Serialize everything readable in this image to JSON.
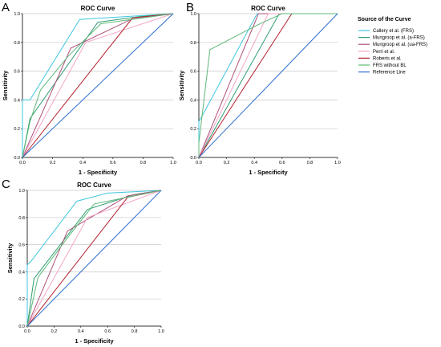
{
  "legend": {
    "title": "Source of the Curve",
    "items": [
      {
        "label": "Callery et al. (FRS)",
        "color": "#3ec6e0"
      },
      {
        "label": "Mungroop et al. (a-FRS)",
        "color": "#2e9e72"
      },
      {
        "label": "Mungroop et al. (ua-FRS)",
        "color": "#b0507a"
      },
      {
        "label": "Perri et al.",
        "color": "#f4a6c8"
      },
      {
        "label": "Roberts et al.",
        "color": "#b3202e"
      },
      {
        "label": "FRS without BL",
        "color": "#5fb87a"
      },
      {
        "label": "Reference Line",
        "color": "#2f6fd0"
      }
    ]
  },
  "chart_data": [
    {
      "panel": "A",
      "type": "line",
      "title": "ROC Curve",
      "xlabel": "1 - Specificity",
      "ylabel": "Sensitivity",
      "xlim": [
        0,
        1
      ],
      "ylim": [
        0,
        1
      ],
      "xticks": [
        "0.0",
        "0.2",
        "0.4",
        "0.6",
        "0.8",
        "1.0"
      ],
      "yticks": [
        "0.0",
        "0.2",
        "0.4",
        "0.6",
        "0.8",
        "1.0"
      ],
      "grid": "horizontal",
      "series": [
        {
          "name": "Callery et al. (FRS)",
          "points": [
            [
              0,
              0
            ],
            [
              0,
              0.4
            ],
            [
              0.05,
              0.4
            ],
            [
              0.38,
              0.96
            ],
            [
              1,
              1
            ]
          ]
        },
        {
          "name": "Mungroop et al. (a-FRS)",
          "points": [
            [
              0,
              0
            ],
            [
              0.05,
              0.27
            ],
            [
              0.5,
              0.94
            ],
            [
              0.78,
              0.98
            ],
            [
              1,
              1
            ]
          ]
        },
        {
          "name": "Mungroop et al. (ua-FRS)",
          "points": [
            [
              0,
              0
            ],
            [
              0.32,
              0.76
            ],
            [
              0.72,
              0.96
            ],
            [
              1,
              1
            ]
          ]
        },
        {
          "name": "Perri et al.",
          "points": [
            [
              0,
              0
            ],
            [
              0.42,
              0.8
            ],
            [
              1,
              1
            ]
          ]
        },
        {
          "name": "Roberts et al.",
          "points": [
            [
              0,
              0
            ],
            [
              0.73,
              0.97
            ],
            [
              1,
              1
            ]
          ]
        },
        {
          "name": "FRS without BL",
          "points": [
            [
              0,
              0
            ],
            [
              0.05,
              0.25
            ],
            [
              0.12,
              0.47
            ],
            [
              0.3,
              0.7
            ],
            [
              0.52,
              0.93
            ],
            [
              1,
              1
            ]
          ]
        },
        {
          "name": "Reference Line",
          "points": [
            [
              0,
              0
            ],
            [
              1,
              1
            ]
          ]
        }
      ]
    },
    {
      "panel": "B",
      "type": "line",
      "title": "ROC Curve",
      "xlabel": "1 - Specificity",
      "ylabel": "Sensitivity",
      "xlim": [
        0,
        1
      ],
      "ylim": [
        0,
        1
      ],
      "xticks": [
        "0.0",
        "0.2",
        "0.4",
        "0.6",
        "0.8",
        "1.0"
      ],
      "yticks": [
        "0.0",
        "0.2",
        "0.4",
        "0.6",
        "0.8",
        "1.0"
      ],
      "grid": "horizontal",
      "series": [
        {
          "name": "Callery et al. (FRS)",
          "points": [
            [
              0,
              0
            ],
            [
              0,
              0.25
            ],
            [
              0.03,
              0.3
            ],
            [
              0.42,
              1
            ],
            [
              1,
              1
            ]
          ]
        },
        {
          "name": "Mungroop et al. (a-FRS)",
          "points": [
            [
              0,
              0
            ],
            [
              0.58,
              1
            ],
            [
              1,
              1
            ]
          ]
        },
        {
          "name": "Mungroop et al. (ua-FRS)",
          "points": [
            [
              0,
              0
            ],
            [
              0.43,
              1
            ],
            [
              1,
              1
            ]
          ]
        },
        {
          "name": "Perri et al.",
          "points": [
            [
              0,
              0
            ],
            [
              0.5,
              1
            ],
            [
              1,
              1
            ]
          ]
        },
        {
          "name": "Roberts et al.",
          "points": [
            [
              0,
              0
            ],
            [
              0.67,
              1
            ],
            [
              1,
              1
            ]
          ]
        },
        {
          "name": "FRS without BL",
          "points": [
            [
              0,
              0
            ],
            [
              0,
              0.1
            ],
            [
              0.08,
              0.75
            ],
            [
              0.42,
              0.92
            ],
            [
              0.6,
              1
            ],
            [
              1,
              1
            ]
          ]
        },
        {
          "name": "Reference Line",
          "points": [
            [
              0,
              0
            ],
            [
              1,
              1
            ]
          ]
        }
      ]
    },
    {
      "panel": "C",
      "type": "line",
      "title": "ROC Curve",
      "xlabel": "1 - Specificity",
      "ylabel": "Sensitivity",
      "xlim": [
        0,
        1
      ],
      "ylim": [
        0,
        1
      ],
      "xticks": [
        "0.0",
        "0.2",
        "0.4",
        "0.6",
        "0.8",
        "1.0"
      ],
      "yticks": [
        "0.0",
        "0.2",
        "0.4",
        "0.6",
        "0.8",
        "1.0"
      ],
      "grid": "horizontal",
      "series": [
        {
          "name": "Callery et al. (FRS)",
          "points": [
            [
              0,
              0
            ],
            [
              0,
              0.45
            ],
            [
              0.03,
              0.48
            ],
            [
              0.37,
              0.92
            ],
            [
              0.6,
              0.98
            ],
            [
              1,
              1
            ]
          ]
        },
        {
          "name": "Mungroop et al. (a-FRS)",
          "points": [
            [
              0,
              0
            ],
            [
              0.05,
              0.35
            ],
            [
              0.45,
              0.86
            ],
            [
              0.8,
              0.97
            ],
            [
              1,
              1
            ]
          ]
        },
        {
          "name": "Mungroop et al. (ua-FRS)",
          "points": [
            [
              0,
              0
            ],
            [
              0.3,
              0.7
            ],
            [
              0.75,
              0.96
            ],
            [
              1,
              1
            ]
          ]
        },
        {
          "name": "Perri et al.",
          "points": [
            [
              0,
              0
            ],
            [
              0.45,
              0.8
            ],
            [
              1,
              1
            ]
          ]
        },
        {
          "name": "Roberts et al.",
          "points": [
            [
              0,
              0
            ],
            [
              0.75,
              0.95
            ],
            [
              1,
              1
            ]
          ]
        },
        {
          "name": "FRS without BL",
          "points": [
            [
              0,
              0
            ],
            [
              0.08,
              0.36
            ],
            [
              0.3,
              0.65
            ],
            [
              0.5,
              0.9
            ],
            [
              1,
              1
            ]
          ]
        },
        {
          "name": "Reference Line",
          "points": [
            [
              0,
              0
            ],
            [
              1,
              1
            ]
          ]
        }
      ]
    }
  ]
}
